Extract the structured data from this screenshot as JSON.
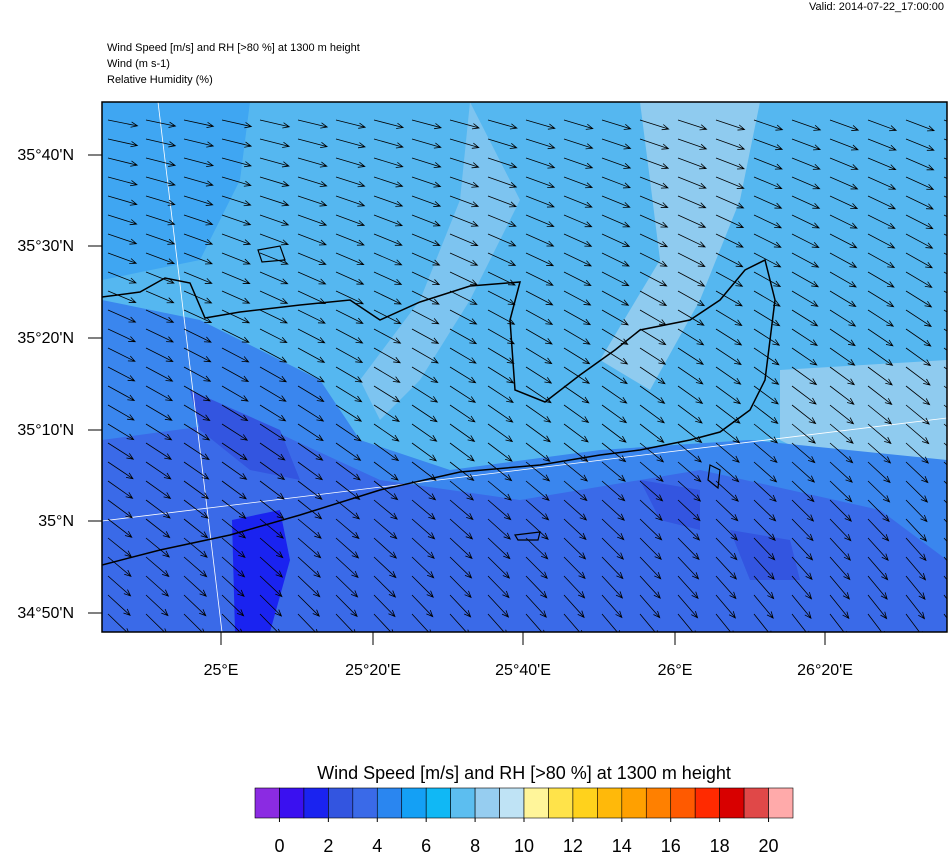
{
  "valid": "Valid: 2014-07-22_17:00:00",
  "header": {
    "lines": [
      "Wind Speed [m/s] and RH [>80 %] at 1300 m height",
      "Wind   (m s-1)",
      "Relative Humidity   (%)"
    ]
  },
  "map": {
    "lat_labels": [
      "35°40'N",
      "35°30'N",
      "35°20'N",
      "35°10'N",
      "35°N",
      "34°50'N"
    ],
    "lon_labels": [
      "25°E",
      "25°20'E",
      "25°40'E",
      "26°E",
      "26°20'E"
    ]
  },
  "colorbar": {
    "title": "Wind Speed [m/s] and RH [>80 %] at 1300 m height",
    "lim": [
      -1,
      21
    ],
    "ticks": [
      0,
      2,
      4,
      6,
      8,
      10,
      12,
      14,
      16,
      18,
      20
    ],
    "colors": [
      "#8b2be2",
      "#3a10f0",
      "#1a23f0",
      "#3355e0",
      "#3a6ae8",
      "#2a86f0",
      "#14a0f5",
      "#10b8f5",
      "#5cbef0",
      "#96cdf0",
      "#bfe3f5",
      "#fff59a",
      "#ffe34a",
      "#ffd21c",
      "#ffb90a",
      "#ffa000",
      "#ff8000",
      "#ff5a00",
      "#ff2a00",
      "#d80000",
      "#e04848",
      "#ffaaaa"
    ]
  }
}
